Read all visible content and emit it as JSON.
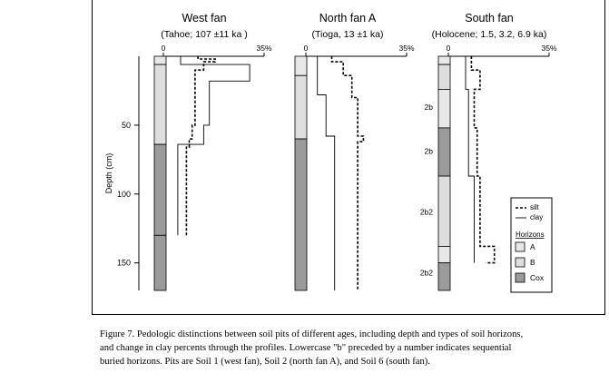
{
  "colors": {
    "horizon_A": "#e8e8e8",
    "horizon_B": "#dedede",
    "horizon_Cox": "#9b9b9b",
    "line": "#000000"
  },
  "chart_data": {
    "type": "line",
    "ylabel": "Depth (cm)",
    "y_ticks": [
      50,
      100,
      150
    ],
    "ylim": [
      0,
      170
    ],
    "xlim": [
      0,
      35
    ],
    "grid": false,
    "legend": {
      "placement": "lower-right",
      "series": [
        "silt",
        "clay"
      ],
      "horizons_title": "Horizons",
      "horizons": [
        "A",
        "B",
        "Cox"
      ]
    },
    "panels": [
      {
        "title": "West fan",
        "subtitle": "(Tahoe; 107 ±11 ka )",
        "x_tick_labels": [
          "0",
          "35%"
        ],
        "horizons": [
          {
            "name": "A",
            "top": 0,
            "bottom": 6
          },
          {
            "name": "B",
            "top": 6,
            "bottom": 64
          },
          {
            "name": "Cox",
            "top": 64,
            "bottom": 130
          },
          {
            "name": "Cox",
            "top": 130,
            "bottom": 170
          }
        ],
        "horizon_labels": [],
        "series": [
          {
            "name": "silt",
            "values": [
              [
                12,
                0
              ],
              [
                12,
                2
              ],
              [
                18,
                2
              ],
              [
                18,
                4
              ],
              [
                14,
                4
              ],
              [
                14,
                6
              ],
              [
                14,
                10
              ],
              [
                11,
                10
              ],
              [
                11,
                18
              ],
              [
                11,
                50
              ],
              [
                10,
                50
              ],
              [
                10,
                60
              ],
              [
                9,
                60
              ],
              [
                9,
                66
              ],
              [
                8,
                66
              ],
              [
                8,
                130
              ]
            ]
          },
          {
            "name": "clay",
            "values": [
              [
                6,
                0
              ],
              [
                6,
                6
              ],
              [
                30,
                6
              ],
              [
                30,
                18
              ],
              [
                16,
                18
              ],
              [
                16,
                50
              ],
              [
                14,
                50
              ],
              [
                14,
                64
              ],
              [
                5,
                64
              ],
              [
                5,
                130
              ]
            ]
          }
        ]
      },
      {
        "title": "North fan A",
        "subtitle": "(Tioga, 13 ±1 ka)",
        "x_tick_labels": [
          "0",
          "35%"
        ],
        "horizons": [
          {
            "name": "A",
            "top": 0,
            "bottom": 14
          },
          {
            "name": "B",
            "top": 14,
            "bottom": 60
          },
          {
            "name": "Cox",
            "top": 60,
            "bottom": 170
          }
        ],
        "horizon_labels": [],
        "series": [
          {
            "name": "silt",
            "values": [
              [
                9,
                0
              ],
              [
                9,
                4
              ],
              [
                13,
                4
              ],
              [
                13,
                14
              ],
              [
                16,
                14
              ],
              [
                16,
                30
              ],
              [
                18,
                30
              ],
              [
                18,
                58
              ],
              [
                20,
                58
              ],
              [
                20,
                62
              ],
              [
                18,
                62
              ],
              [
                18,
                170
              ]
            ]
          },
          {
            "name": "clay",
            "values": [
              [
                4,
                0
              ],
              [
                4,
                28
              ],
              [
                7,
                28
              ],
              [
                7,
                58
              ],
              [
                10,
                58
              ],
              [
                10,
                170
              ]
            ]
          }
        ]
      },
      {
        "title": "South fan",
        "subtitle": "(Holocene; 1.5, 3.2, 6.9 ka)",
        "x_tick_labels": [
          "0",
          "35%"
        ],
        "horizons": [
          {
            "name": "A",
            "top": 0,
            "bottom": 6
          },
          {
            "name": "B",
            "top": 6,
            "bottom": 24
          },
          {
            "name": "A",
            "top": 24,
            "bottom": 52
          },
          {
            "name": "Cox",
            "top": 52,
            "bottom": 87
          },
          {
            "name": "B",
            "top": 87,
            "bottom": 138
          },
          {
            "name": "A",
            "top": 138,
            "bottom": 150
          },
          {
            "name": "Cox",
            "top": 150,
            "bottom": 170
          }
        ],
        "horizon_labels": [
          {
            "text": "2b",
            "depth": 37
          },
          {
            "text": "2b",
            "depth": 69
          },
          {
            "text": "2b2",
            "depth": 113
          },
          {
            "text": "2b2",
            "depth": 157
          }
        ],
        "series": [
          {
            "name": "silt",
            "values": [
              [
                8,
                0
              ],
              [
                8,
                10
              ],
              [
                11,
                10
              ],
              [
                11,
                24
              ],
              [
                9,
                24
              ],
              [
                9,
                52
              ],
              [
                10,
                52
              ],
              [
                10,
                87
              ],
              [
                11,
                87
              ],
              [
                11,
                138
              ],
              [
                16,
                138
              ],
              [
                16,
                150
              ],
              [
                13,
                150
              ]
            ]
          },
          {
            "name": "clay",
            "values": [
              [
                6,
                0
              ],
              [
                6,
                24
              ],
              [
                7,
                24
              ],
              [
                7,
                87
              ],
              [
                9,
                87
              ],
              [
                9,
                138
              ],
              [
                9,
                150
              ]
            ]
          }
        ]
      }
    ]
  },
  "caption": {
    "line1": "Figure 7. Pedologic distinctions between soil pits of different ages, including depth and types of soil horizons,",
    "line2": "and change in clay percents through the profiles. Lowercase \"b\" preceded by a number indicates sequential",
    "line3": "buried horizons. Pits are Soil 1 (west fan), Soil 2 (north fan A), and Soil 6 (south fan)."
  }
}
